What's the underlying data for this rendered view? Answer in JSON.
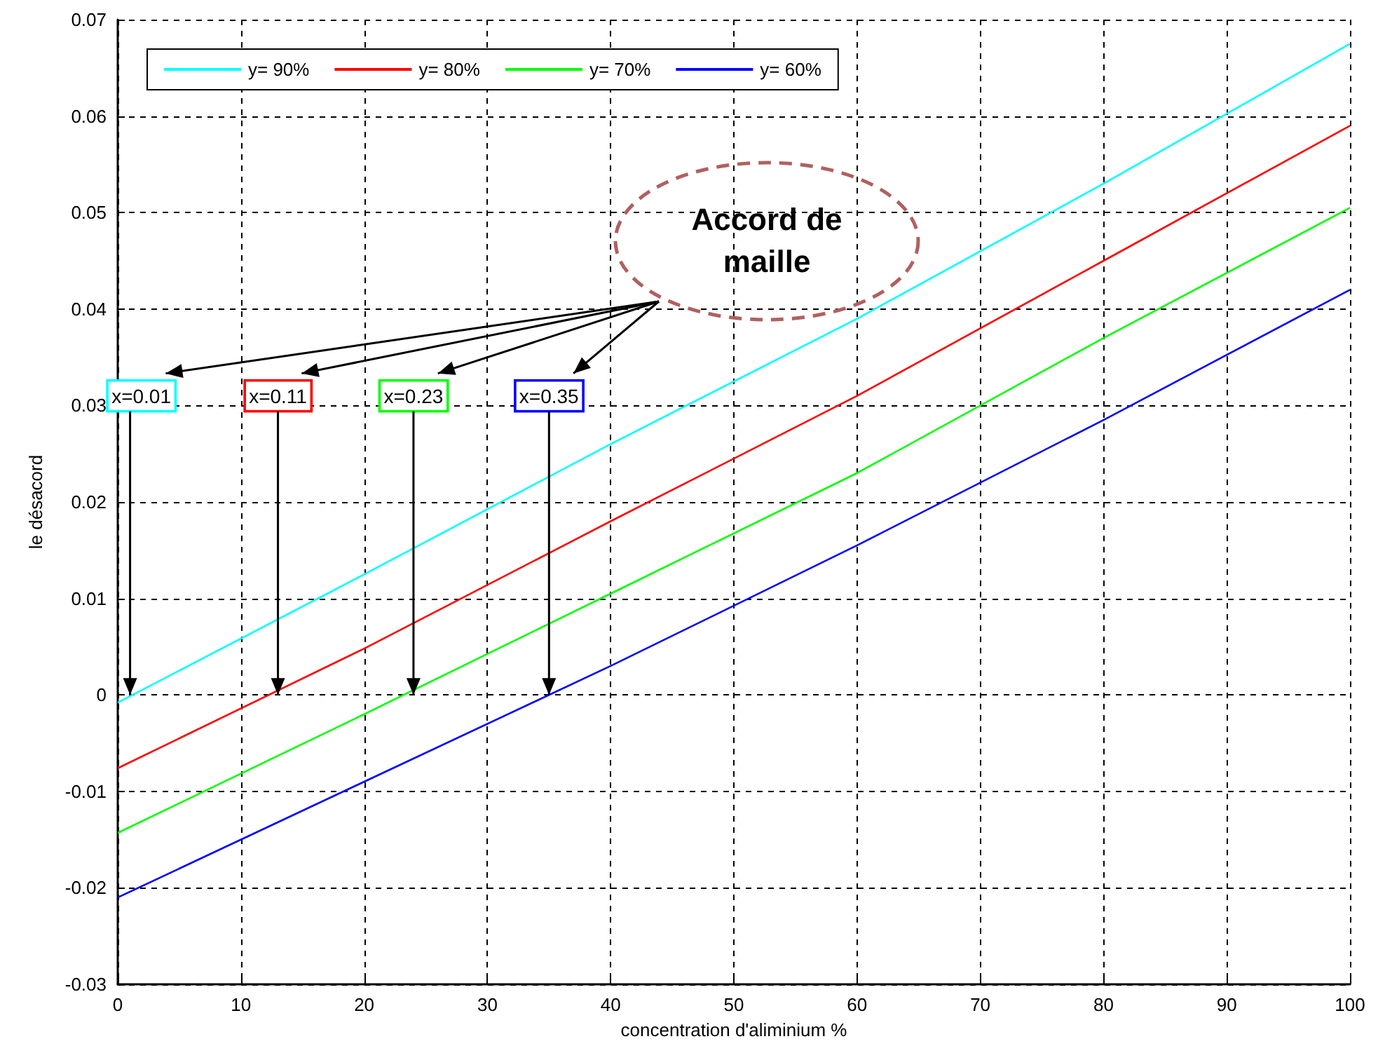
{
  "chart_data": {
    "type": "line",
    "xlabel": "concentration d'aliminium %",
    "ylabel": "le désacord",
    "x": [
      0,
      20,
      40,
      60,
      80,
      100
    ],
    "series": [
      {
        "name": "y= 90%",
        "color": "#00ffff",
        "values": [
          -0.0008,
          0.0125,
          0.026,
          0.039,
          0.053,
          0.0675
        ]
      },
      {
        "name": "y= 80%",
        "color": "#ff0000",
        "values": [
          -0.0076,
          0.0048,
          0.018,
          0.031,
          0.045,
          0.059
        ]
      },
      {
        "name": "y= 70%",
        "color": "#00ff00",
        "values": [
          -0.0143,
          -0.002,
          0.0105,
          0.023,
          0.037,
          0.0505
        ]
      },
      {
        "name": "y= 60%",
        "color": "#0000ff",
        "values": [
          -0.021,
          -0.009,
          0.003,
          0.0155,
          0.0285,
          0.042
        ]
      }
    ],
    "xlim": [
      0,
      100
    ],
    "xticks": [
      0,
      10,
      20,
      30,
      40,
      50,
      60,
      70,
      80,
      90,
      100
    ],
    "ylim": [
      -0.03,
      0.07
    ],
    "yticks": [
      -0.03,
      -0.02,
      -0.01,
      0,
      0.01,
      0.02,
      0.03,
      0.04,
      0.05,
      0.06,
      0.07
    ],
    "annotations": [
      "Accord de maille",
      {
        "text": "x=0.01",
        "x": 1,
        "y": 0
      },
      {
        "text": "x=0.11",
        "x": 13,
        "y": 0
      },
      {
        "text": "x=0.23",
        "x": 24,
        "y": 0
      },
      {
        "text": "x=0.35",
        "x": 35,
        "y": 0
      }
    ],
    "grid": true,
    "legend": "top left",
    "marker": "none",
    "line_style": "solid"
  }
}
